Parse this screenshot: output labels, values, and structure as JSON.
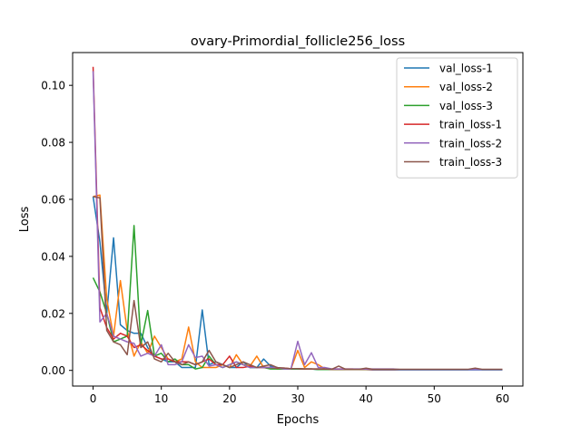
{
  "chart_data": {
    "type": "line",
    "title": "ovary-Primordial_follicle256_loss",
    "xlabel": "Epochs",
    "ylabel": "Loss",
    "xlim": [
      -3,
      63
    ],
    "ylim": [
      -0.0055,
      0.1115
    ],
    "xticks": [
      0,
      10,
      20,
      30,
      40,
      50,
      60
    ],
    "yticks": [
      0.0,
      0.02,
      0.04,
      0.06,
      0.08,
      0.1
    ],
    "xtick_labels": [
      "0",
      "10",
      "20",
      "30",
      "40",
      "50",
      "60"
    ],
    "ytick_labels": [
      "0.00",
      "0.02",
      "0.04",
      "0.06",
      "0.08",
      "0.10"
    ],
    "grid": false,
    "legend_position": "top-right",
    "x": [
      0,
      1,
      2,
      3,
      4,
      5,
      6,
      7,
      8,
      9,
      10,
      11,
      12,
      13,
      14,
      15,
      16,
      17,
      18,
      19,
      20,
      21,
      22,
      23,
      24,
      25,
      26,
      27,
      28,
      29,
      30,
      31,
      32,
      33,
      34,
      35,
      36,
      37,
      38,
      39,
      40,
      41,
      42,
      43,
      44,
      45,
      46,
      47,
      48,
      49,
      50,
      51,
      52,
      53,
      54,
      55,
      56,
      57,
      58,
      59,
      60
    ],
    "series": [
      {
        "name": "val_loss-1",
        "color": "#1f77b4",
        "values": [
          0.061,
          0.045,
          0.02,
          0.0465,
          0.016,
          0.014,
          0.013,
          0.013,
          0.008,
          0.005,
          0.004,
          0.003,
          0.003,
          0.001,
          0.001,
          0.001,
          0.0212,
          0.002,
          0.003,
          0.002,
          0.001,
          0.001,
          0.003,
          0.001,
          0.001,
          0.004,
          0.0015,
          0.001,
          0.0005,
          0.0005,
          0.0005,
          0.0005,
          0.0005,
          0.0003,
          0.0003,
          0.0003,
          0.0003,
          0.0003,
          0.0003,
          0.0003,
          0.0003,
          0.0002,
          0.0002,
          0.0002,
          0.0002,
          0.0002,
          0.0002,
          0.0002,
          0.0002,
          0.0002,
          0.0002,
          0.0002,
          0.0002,
          0.0002,
          0.0002,
          0.0002,
          0.0002,
          0.0002,
          0.0002,
          0.0002,
          0.0002
        ]
      },
      {
        "name": "val_loss-2",
        "color": "#ff7f0e",
        "values": [
          0.061,
          0.0615,
          0.025,
          0.012,
          0.0315,
          0.014,
          0.005,
          0.01,
          0.006,
          0.012,
          0.008,
          0.004,
          0.003,
          0.004,
          0.0152,
          0.003,
          0.001,
          0.001,
          0.001,
          0.002,
          0.001,
          0.0055,
          0.002,
          0.0015,
          0.005,
          0.001,
          0.001,
          0.0005,
          0.0005,
          0.0005,
          0.007,
          0.001,
          0.003,
          0.002,
          0.0005,
          0.0005,
          0.0005,
          0.0005,
          0.0005,
          0.0003,
          0.0003,
          0.0003,
          0.0003,
          0.0003,
          0.0003,
          0.0003,
          0.0003,
          0.0003,
          0.0003,
          0.0003,
          0.0003,
          0.0003,
          0.0003,
          0.0003,
          0.0003,
          0.0003,
          0.0003,
          0.0003,
          0.0003,
          0.0003,
          0.0003
        ]
      },
      {
        "name": "val_loss-3",
        "color": "#2ca02c",
        "values": [
          0.0325,
          0.0275,
          0.02,
          0.01,
          0.011,
          0.012,
          0.0508,
          0.009,
          0.021,
          0.005,
          0.006,
          0.003,
          0.004,
          0.002,
          0.002,
          0.0005,
          0.001,
          0.005,
          0.002,
          0.001,
          0.002,
          0.003,
          0.002,
          0.001,
          0.001,
          0.001,
          0.0005,
          0.0005,
          0.0005,
          0.0005,
          0.0005,
          0.0005,
          0.0005,
          0.0003,
          0.0003,
          0.0003,
          0.0003,
          0.0003,
          0.0003,
          0.0003,
          0.0003,
          0.0003,
          0.0003,
          0.0003,
          0.0003,
          0.0003,
          0.0003,
          0.0003,
          0.0003,
          0.0003,
          0.0003,
          0.0003,
          0.0003,
          0.0003,
          0.0003,
          0.0003,
          0.0003,
          0.0003,
          0.0003,
          0.0003,
          0.0003
        ]
      },
      {
        "name": "train_loss-1",
        "color": "#d62728",
        "values": [
          0.1065,
          0.022,
          0.015,
          0.011,
          0.013,
          0.012,
          0.008,
          0.009,
          0.007,
          0.005,
          0.004,
          0.004,
          0.003,
          0.003,
          0.003,
          0.002,
          0.003,
          0.004,
          0.002,
          0.002,
          0.005,
          0.001,
          0.001,
          0.0015,
          0.001,
          0.001,
          0.001,
          0.0008,
          0.0008,
          0.0006,
          0.0006,
          0.0005,
          0.0005,
          0.0005,
          0.0005,
          0.0004,
          0.0004,
          0.0004,
          0.0004,
          0.0004,
          0.0004,
          0.0003,
          0.0003,
          0.0003,
          0.0003,
          0.0003,
          0.0003,
          0.0003,
          0.0003,
          0.0003,
          0.0003,
          0.0003,
          0.0003,
          0.0003,
          0.0003,
          0.0003,
          0.0003,
          0.0003,
          0.0003,
          0.0003,
          0.0003
        ]
      },
      {
        "name": "train_loss-2",
        "color": "#9467bd",
        "values": [
          0.105,
          0.017,
          0.02,
          0.012,
          0.011,
          0.01,
          0.0095,
          0.005,
          0.006,
          0.005,
          0.009,
          0.002,
          0.002,
          0.003,
          0.009,
          0.0045,
          0.005,
          0.0015,
          0.002,
          0.001,
          0.002,
          0.003,
          0.002,
          0.001,
          0.001,
          0.001,
          0.001,
          0.001,
          0.0005,
          0.0005,
          0.0102,
          0.002,
          0.0062,
          0.001,
          0.001,
          0.0005,
          0.0005,
          0.0005,
          0.0005,
          0.0005,
          0.0005,
          0.0005,
          0.0005,
          0.0005,
          0.0005,
          0.0003,
          0.0003,
          0.0003,
          0.0003,
          0.0003,
          0.0003,
          0.0003,
          0.0003,
          0.0003,
          0.0003,
          0.0003,
          0.0003,
          0.0003,
          0.0003,
          0.0003,
          0.0003
        ]
      },
      {
        "name": "train_loss-3",
        "color": "#8c564b",
        "values": [
          0.061,
          0.0605,
          0.014,
          0.01,
          0.009,
          0.0055,
          0.0245,
          0.008,
          0.01,
          0.004,
          0.003,
          0.006,
          0.003,
          0.002,
          0.003,
          0.002,
          0.003,
          0.007,
          0.003,
          0.002,
          0.001,
          0.002,
          0.003,
          0.002,
          0.001,
          0.0015,
          0.002,
          0.001,
          0.0008,
          0.0006,
          0.0006,
          0.0005,
          0.0005,
          0.0005,
          0.0005,
          0.0004,
          0.0015,
          0.0004,
          0.0004,
          0.0004,
          0.0008,
          0.0004,
          0.0004,
          0.0004,
          0.0004,
          0.0004,
          0.0004,
          0.0004,
          0.0004,
          0.0004,
          0.0004,
          0.0004,
          0.0004,
          0.0004,
          0.0004,
          0.0004,
          0.0008,
          0.0004,
          0.0004,
          0.0004,
          0.0004
        ]
      }
    ]
  }
}
